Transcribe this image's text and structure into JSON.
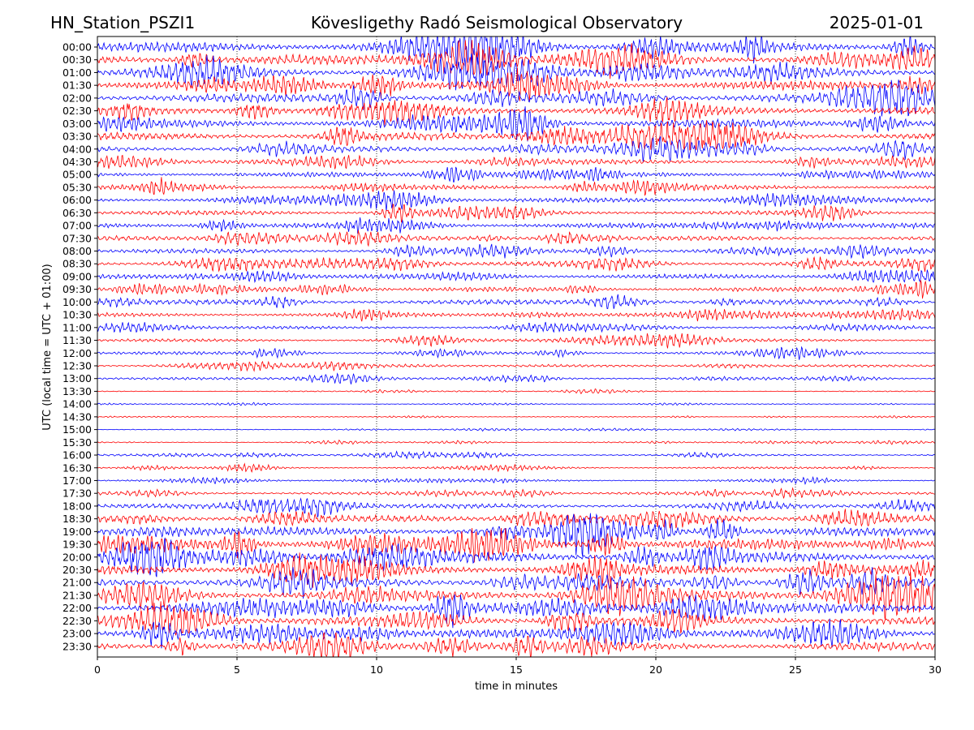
{
  "header": {
    "station": "HN_Station_PSZI1",
    "observatory": "Kövesligethy Radó Seismological Observatory",
    "date": "2025-01-01"
  },
  "chart_data": {
    "type": "line",
    "chart_kind": "helicorder (24-hour seismogram)",
    "xlabel": "time in minutes",
    "ylabel": "UTC (local time = UTC + 01:00)",
    "xlim": [
      0,
      30
    ],
    "x_ticks": [
      "0",
      "5",
      "10",
      "15",
      "20",
      "25",
      "30"
    ],
    "vertical_gridlines_at": [
      5,
      10,
      15,
      20,
      25
    ],
    "grid": "vertical dotted lines at x ticks",
    "trace_colors": [
      "#0000ff",
      "#ff0000"
    ],
    "rows": [
      "00:00",
      "00:30",
      "01:00",
      "01:30",
      "02:00",
      "02:30",
      "03:00",
      "03:30",
      "04:00",
      "04:30",
      "05:00",
      "05:30",
      "06:00",
      "06:30",
      "07:00",
      "07:30",
      "08:00",
      "08:30",
      "09:00",
      "09:30",
      "10:00",
      "10:30",
      "11:00",
      "11:30",
      "12:00",
      "12:30",
      "13:00",
      "13:30",
      "14:00",
      "14:30",
      "15:00",
      "15:30",
      "16:00",
      "16:30",
      "17:00",
      "17:30",
      "18:00",
      "18:30",
      "19:00",
      "19:30",
      "20:00",
      "20:30",
      "21:00",
      "21:30",
      "22:00",
      "22:30",
      "23:00",
      "23:30"
    ],
    "relative_amplitude": [
      0.95,
      0.95,
      0.9,
      0.9,
      0.85,
      0.85,
      0.8,
      0.75,
      0.6,
      0.5,
      0.45,
      0.45,
      0.45,
      0.45,
      0.5,
      0.45,
      0.45,
      0.5,
      0.45,
      0.45,
      0.5,
      0.4,
      0.3,
      0.3,
      0.3,
      0.25,
      0.25,
      0.1,
      0.08,
      0.08,
      0.08,
      0.12,
      0.2,
      0.2,
      0.2,
      0.3,
      0.45,
      0.65,
      0.85,
      1.0,
      1.0,
      1.0,
      1.0,
      1.0,
      0.95,
      0.9,
      0.85,
      0.8
    ]
  }
}
